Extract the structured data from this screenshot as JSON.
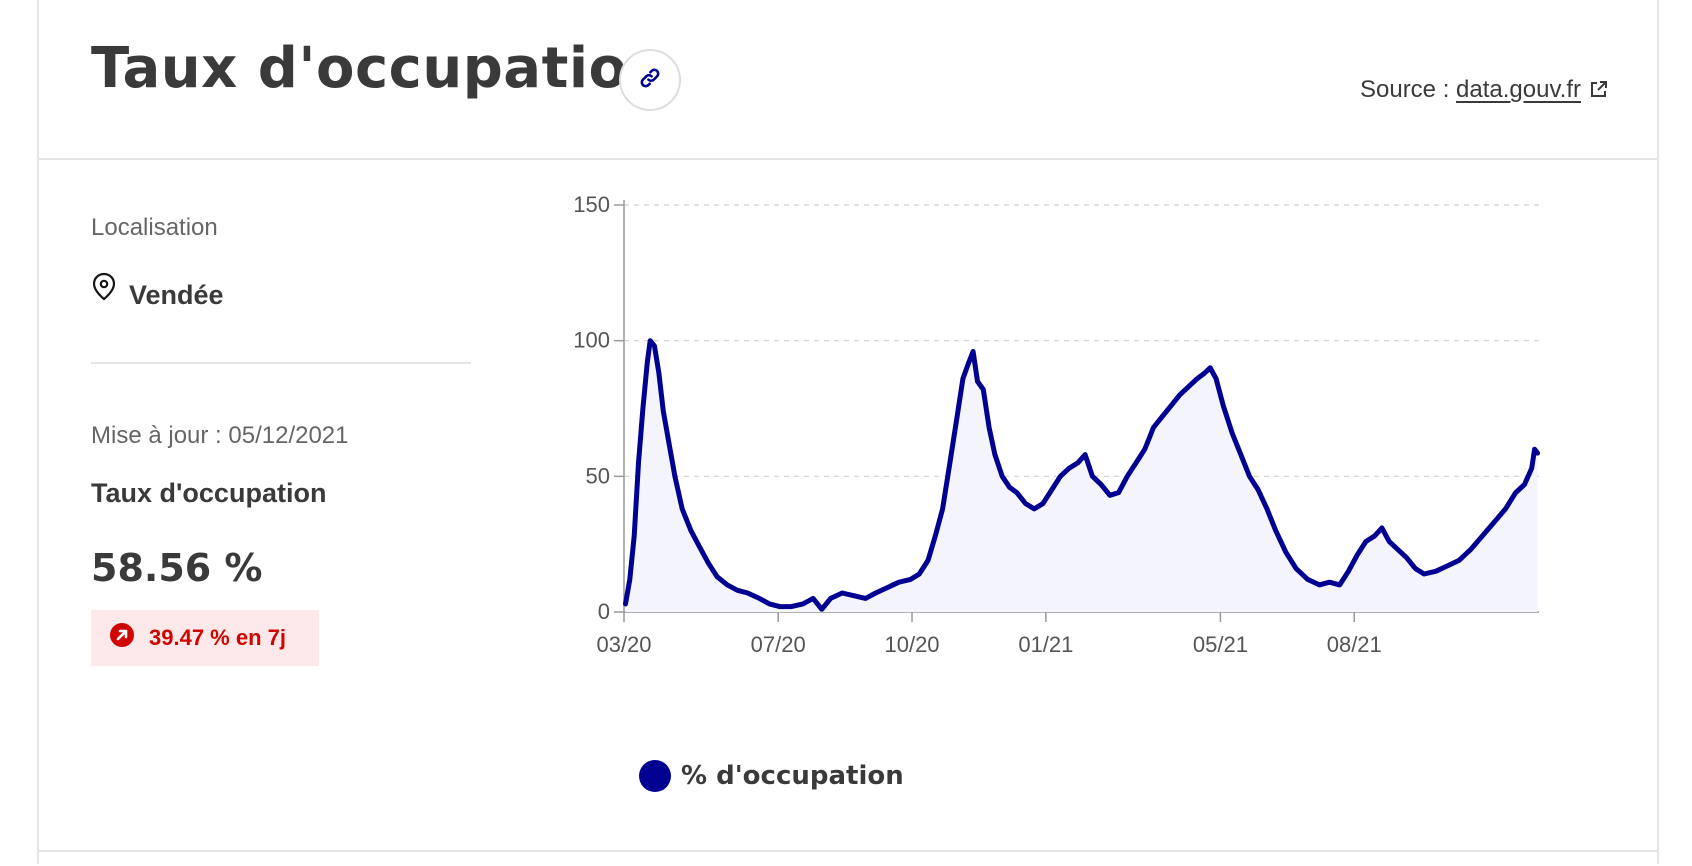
{
  "header": {
    "title": "Taux d'occupation",
    "source_prefix": "Source : ",
    "source_link": "data.gouv.fr",
    "link_icon": "link-icon",
    "external_icon": "external-link-icon"
  },
  "sidebar": {
    "localisation_label": "Localisation",
    "location_icon": "map-pin-icon",
    "location_name": "Vendée",
    "update_text": "Mise à jour : 05/12/2021",
    "kpi_title": "Taux d'occupation",
    "kpi_value": "58.56 %",
    "trend_icon": "arrow-up-right-icon",
    "trend_text": "39.47 % en 7j"
  },
  "colors": {
    "line": "#000091",
    "fill": "#f4f4fc",
    "trend": "#ce0500",
    "trend_bg": "#fde9e9"
  },
  "chart_data": {
    "type": "line",
    "title": "",
    "xlabel": "",
    "ylabel": "",
    "ylim": [
      0,
      150
    ],
    "y_ticks": [
      0,
      50,
      100,
      150
    ],
    "x_ticks": [
      "03/20",
      "07/20",
      "10/20",
      "01/21",
      "05/21",
      "08/21"
    ],
    "grid": true,
    "legend": "bottom-left",
    "x_start": "2020-03-18",
    "x_end": "2021-12-05",
    "series": [
      {
        "name": "% d'occupation",
        "points": [
          [
            "2020-03-18",
            3
          ],
          [
            "2020-03-21",
            12
          ],
          [
            "2020-03-24",
            28
          ],
          [
            "2020-03-27",
            55
          ],
          [
            "2020-03-30",
            75
          ],
          [
            "2020-04-02",
            92
          ],
          [
            "2020-04-04",
            100
          ],
          [
            "2020-04-07",
            98
          ],
          [
            "2020-04-10",
            88
          ],
          [
            "2020-04-13",
            74
          ],
          [
            "2020-04-17",
            62
          ],
          [
            "2020-04-21",
            50
          ],
          [
            "2020-04-26",
            38
          ],
          [
            "2020-05-02",
            30
          ],
          [
            "2020-05-08",
            24
          ],
          [
            "2020-05-14",
            18
          ],
          [
            "2020-05-20",
            13
          ],
          [
            "2020-05-27",
            10
          ],
          [
            "2020-06-03",
            8
          ],
          [
            "2020-06-10",
            7
          ],
          [
            "2020-06-18",
            5
          ],
          [
            "2020-06-25",
            3
          ],
          [
            "2020-07-02",
            2
          ],
          [
            "2020-07-10",
            2
          ],
          [
            "2020-07-18",
            3
          ],
          [
            "2020-07-25",
            5
          ],
          [
            "2020-07-31",
            1
          ],
          [
            "2020-08-06",
            5
          ],
          [
            "2020-08-14",
            7
          ],
          [
            "2020-08-22",
            6
          ],
          [
            "2020-08-30",
            5
          ],
          [
            "2020-09-06",
            7
          ],
          [
            "2020-09-14",
            9
          ],
          [
            "2020-09-22",
            11
          ],
          [
            "2020-09-30",
            12
          ],
          [
            "2020-10-06",
            14
          ],
          [
            "2020-10-12",
            19
          ],
          [
            "2020-10-17",
            28
          ],
          [
            "2020-10-22",
            38
          ],
          [
            "2020-10-27",
            55
          ],
          [
            "2020-11-01",
            72
          ],
          [
            "2020-11-05",
            86
          ],
          [
            "2020-11-09",
            92
          ],
          [
            "2020-11-12",
            96
          ],
          [
            "2020-11-15",
            85
          ],
          [
            "2020-11-19",
            82
          ],
          [
            "2020-11-23",
            68
          ],
          [
            "2020-11-27",
            58
          ],
          [
            "2020-12-02",
            50
          ],
          [
            "2020-12-07",
            46
          ],
          [
            "2020-12-12",
            44
          ],
          [
            "2020-12-18",
            40
          ],
          [
            "2020-12-24",
            38
          ],
          [
            "2020-12-30",
            40
          ],
          [
            "2021-01-05",
            45
          ],
          [
            "2021-01-11",
            50
          ],
          [
            "2021-01-17",
            53
          ],
          [
            "2021-01-23",
            55
          ],
          [
            "2021-01-28",
            58
          ],
          [
            "2021-02-02",
            50
          ],
          [
            "2021-02-08",
            47
          ],
          [
            "2021-02-14",
            43
          ],
          [
            "2021-02-20",
            44
          ],
          [
            "2021-02-26",
            50
          ],
          [
            "2021-03-04",
            55
          ],
          [
            "2021-03-10",
            60
          ],
          [
            "2021-03-16",
            68
          ],
          [
            "2021-03-22",
            72
          ],
          [
            "2021-03-28",
            76
          ],
          [
            "2021-04-03",
            80
          ],
          [
            "2021-04-09",
            83
          ],
          [
            "2021-04-15",
            86
          ],
          [
            "2021-04-20",
            88
          ],
          [
            "2021-04-24",
            90
          ],
          [
            "2021-04-28",
            86
          ],
          [
            "2021-05-03",
            76
          ],
          [
            "2021-05-09",
            66
          ],
          [
            "2021-05-15",
            58
          ],
          [
            "2021-05-21",
            50
          ],
          [
            "2021-05-27",
            45
          ],
          [
            "2021-06-02",
            38
          ],
          [
            "2021-06-08",
            30
          ],
          [
            "2021-06-15",
            22
          ],
          [
            "2021-06-22",
            16
          ],
          [
            "2021-06-30",
            12
          ],
          [
            "2021-07-08",
            10
          ],
          [
            "2021-07-15",
            11
          ],
          [
            "2021-07-22",
            10
          ],
          [
            "2021-07-28",
            15
          ],
          [
            "2021-08-03",
            21
          ],
          [
            "2021-08-09",
            26
          ],
          [
            "2021-08-15",
            28
          ],
          [
            "2021-08-20",
            31
          ],
          [
            "2021-08-25",
            26
          ],
          [
            "2021-08-31",
            23
          ],
          [
            "2021-09-06",
            20
          ],
          [
            "2021-09-12",
            16
          ],
          [
            "2021-09-18",
            14
          ],
          [
            "2021-09-26",
            15
          ],
          [
            "2021-10-04",
            17
          ],
          [
            "2021-10-12",
            19
          ],
          [
            "2021-10-20",
            23
          ],
          [
            "2021-10-28",
            28
          ],
          [
            "2021-11-05",
            33
          ],
          [
            "2021-11-13",
            38
          ],
          [
            "2021-11-20",
            44
          ],
          [
            "2021-11-26",
            47
          ],
          [
            "2021-12-01",
            53
          ],
          [
            "2021-12-03",
            60
          ],
          [
            "2021-12-05",
            58.56
          ]
        ]
      }
    ]
  }
}
